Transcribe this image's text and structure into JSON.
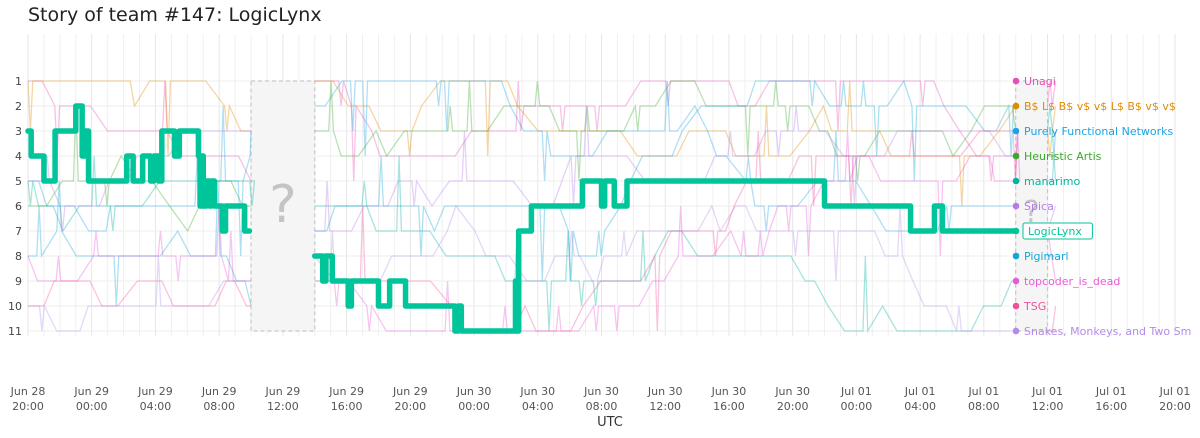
{
  "chart_data": {
    "type": "line",
    "title": "Story of team #147: LogicLynx",
    "xlabel": "UTC",
    "ylabel": "",
    "x_tick_labels": [
      [
        "Jun 28",
        "20:00"
      ],
      [
        "Jun 29",
        "00:00"
      ],
      [
        "Jun 29",
        "04:00"
      ],
      [
        "Jun 29",
        "08:00"
      ],
      [
        "Jun 29",
        "12:00"
      ],
      [
        "Jun 29",
        "16:00"
      ],
      [
        "Jun 29",
        "20:00"
      ],
      [
        "Jun 30",
        "00:00"
      ],
      [
        "Jun 30",
        "04:00"
      ],
      [
        "Jun 30",
        "08:00"
      ],
      [
        "Jun 30",
        "12:00"
      ],
      [
        "Jun 30",
        "16:00"
      ],
      [
        "Jun 30",
        "20:00"
      ],
      [
        "Jul 01",
        "00:00"
      ],
      [
        "Jul 01",
        "04:00"
      ],
      [
        "Jul 01",
        "08:00"
      ],
      [
        "Jul 01",
        "12:00"
      ],
      [
        "Jul 01",
        "16:00"
      ],
      [
        "Jul 01",
        "20:00"
      ]
    ],
    "x_hours_range": [
      0,
      72
    ],
    "y_ranks": [
      1,
      2,
      3,
      4,
      5,
      6,
      7,
      8,
      9,
      10,
      11
    ],
    "hidden_periods": [
      {
        "start": 14.0,
        "end": 18.0,
        "marker": "?"
      },
      {
        "start": 62.0,
        "end": 64.0,
        "marker": "?"
      }
    ],
    "teams": [
      {
        "name": "Unagi",
        "rank": 1,
        "color": "#e64fb8"
      },
      {
        "name": "B$ L$ B$ v$ v$ L$ B$ v$ v$",
        "rank": 2,
        "color": "#e08a00"
      },
      {
        "name": "Purely Functional Networks",
        "rank": 3,
        "color": "#1aa3e8"
      },
      {
        "name": "Heuristic Artis",
        "rank": 4,
        "color": "#3aa82a"
      },
      {
        "name": "manarimo",
        "rank": 5,
        "color": "#00b3a0"
      },
      {
        "name": "Spica",
        "rank": 6,
        "color": "#b47ce8"
      },
      {
        "name": "LogicLynx",
        "rank": 7,
        "color": "#00c49a",
        "highlight": true
      },
      {
        "name": "Pigimarl",
        "rank": 8,
        "color": "#12a6d8"
      },
      {
        "name": "topcoder_is_dead",
        "rank": 9,
        "color": "#e85ad8"
      },
      {
        "name": "TSG",
        "rank": 10,
        "color": "#f0509a"
      },
      {
        "name": "Snakes, Monkeys, and Two Sm",
        "rank": 11,
        "color": "#b48ce8"
      }
    ],
    "highlight_series": {
      "name": "LogicLynx",
      "points": [
        [
          0.0,
          3
        ],
        [
          0.2,
          4
        ],
        [
          0.8,
          4
        ],
        [
          1.0,
          5
        ],
        [
          1.5,
          5
        ],
        [
          1.7,
          3
        ],
        [
          2.8,
          3
        ],
        [
          3.0,
          2
        ],
        [
          3.3,
          2
        ],
        [
          3.4,
          4
        ],
        [
          3.6,
          3
        ],
        [
          3.8,
          5
        ],
        [
          6.0,
          5
        ],
        [
          6.2,
          4
        ],
        [
          6.4,
          4
        ],
        [
          6.6,
          5
        ],
        [
          7.0,
          5
        ],
        [
          7.2,
          4
        ],
        [
          7.5,
          4
        ],
        [
          7.7,
          5
        ],
        [
          7.9,
          4
        ],
        [
          8.0,
          4
        ],
        [
          8.2,
          5
        ],
        [
          8.4,
          3
        ],
        [
          9.0,
          3
        ],
        [
          9.2,
          4
        ],
        [
          9.5,
          3
        ],
        [
          10.6,
          3
        ],
        [
          10.7,
          4
        ],
        [
          10.8,
          6
        ],
        [
          10.9,
          4
        ],
        [
          11.0,
          6
        ],
        [
          11.2,
          5
        ],
        [
          11.4,
          6
        ],
        [
          11.5,
          5
        ],
        [
          11.7,
          6
        ],
        [
          12.0,
          6
        ],
        [
          12.2,
          7
        ],
        [
          12.4,
          6
        ],
        [
          13.4,
          6
        ],
        [
          13.6,
          7
        ],
        [
          13.9,
          7
        ],
        [
          18.0,
          8
        ],
        [
          18.4,
          8
        ],
        [
          18.5,
          9
        ],
        [
          18.7,
          8
        ],
        [
          19.0,
          8
        ],
        [
          19.1,
          9
        ],
        [
          20.0,
          9
        ],
        [
          20.1,
          10
        ],
        [
          20.3,
          9
        ],
        [
          21.8,
          9
        ],
        [
          22.0,
          10
        ],
        [
          22.5,
          10
        ],
        [
          22.7,
          9
        ],
        [
          23.5,
          9
        ],
        [
          23.7,
          10
        ],
        [
          26.6,
          10
        ],
        [
          26.8,
          11
        ],
        [
          27.0,
          10
        ],
        [
          27.2,
          11
        ],
        [
          30.5,
          11
        ],
        [
          30.6,
          9
        ],
        [
          30.7,
          11
        ],
        [
          30.8,
          7
        ],
        [
          31.4,
          7
        ],
        [
          31.6,
          6
        ],
        [
          34.6,
          6
        ],
        [
          34.8,
          5
        ],
        [
          35.8,
          5
        ],
        [
          36.0,
          6
        ],
        [
          36.2,
          5
        ],
        [
          36.6,
          5
        ],
        [
          36.8,
          6
        ],
        [
          37.4,
          6
        ],
        [
          37.6,
          5
        ],
        [
          49.8,
          5
        ],
        [
          50.0,
          6
        ],
        [
          55.2,
          6
        ],
        [
          55.4,
          7
        ],
        [
          56.7,
          7
        ],
        [
          56.9,
          6
        ],
        [
          57.2,
          6
        ],
        [
          57.4,
          7
        ],
        [
          58.5,
          7
        ]
      ]
    },
    "grid": true,
    "legend": "right (labels at end of lines)"
  }
}
